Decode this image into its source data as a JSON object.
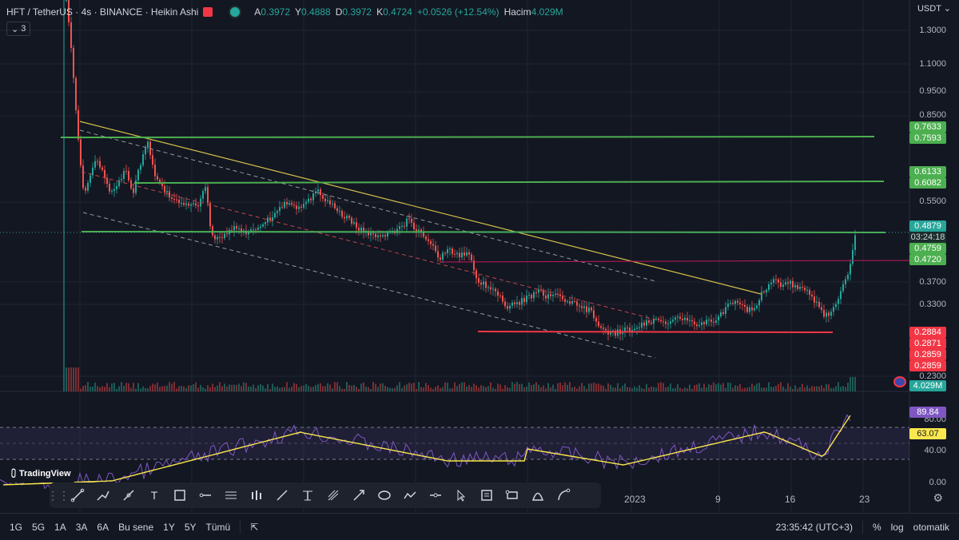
{
  "header": {
    "symbol": "HFT / TetherUS · 4s · BINANCE · Heikin Ashi",
    "open_label": "A",
    "open": "0.3972",
    "high_label": "Y",
    "high": "0.4888",
    "low_label": "D",
    "low": "0.3972",
    "close_label": "K",
    "close": "0.4724",
    "change": "+0.0526 (+12.54%)",
    "volume_label": "Hacim",
    "volume": "4.029M"
  },
  "collapse_count": "3",
  "currency": "USDT",
  "price_axis": [
    "1.3000",
    "1.1000",
    "0.9500",
    "0.8500",
    "0.5500",
    "0.3700",
    "0.3300",
    "0.2300"
  ],
  "price_tags": {
    "t0763": "0.7633",
    "t0759": "0.7593",
    "t0613": "0.6133",
    "t0608": "0.6082",
    "last": "0.4879",
    "countdown": "03:24:18",
    "t0475": "0.4759",
    "t0472": "0.4720",
    "r1": "0.2884",
    "r2": "0.2871",
    "r3": "0.2859",
    "r4": "0.2859",
    "vol": "4.029M"
  },
  "rsi_axis": [
    "80.00",
    "40.00",
    "0.00"
  ],
  "rsi_tags": {
    "rsi": "89.84",
    "ma": "63.07"
  },
  "time_axis": [
    "2023",
    "9",
    "16",
    "23"
  ],
  "branding": "TradingView",
  "bottom": {
    "ranges": [
      "1G",
      "5G",
      "1A",
      "3A",
      "6A",
      "Bu sene",
      "1Y",
      "5Y",
      "Tümü"
    ],
    "clock": "23:35:42 (UTC+3)",
    "percent": "%",
    "log": "log",
    "auto": "otomatik"
  },
  "colors": {
    "up": "#26a69a",
    "down": "#ef5350",
    "green_line": "#4caf50",
    "red_line": "#f23645",
    "trend": "#d4c04a",
    "rsi": "#7e57c2",
    "rsi_ma": "#fbe74e"
  },
  "tools": [
    "trend-line",
    "brush",
    "path",
    "text",
    "rectangle",
    "horizontal-ray",
    "parallel-channel",
    "bars-pattern",
    "line",
    "fib",
    "pitchfork",
    "arrow",
    "ellipse",
    "path-zigzag",
    "horizontal-line",
    "cursor",
    "note",
    "callout",
    "arc",
    "curve"
  ]
}
